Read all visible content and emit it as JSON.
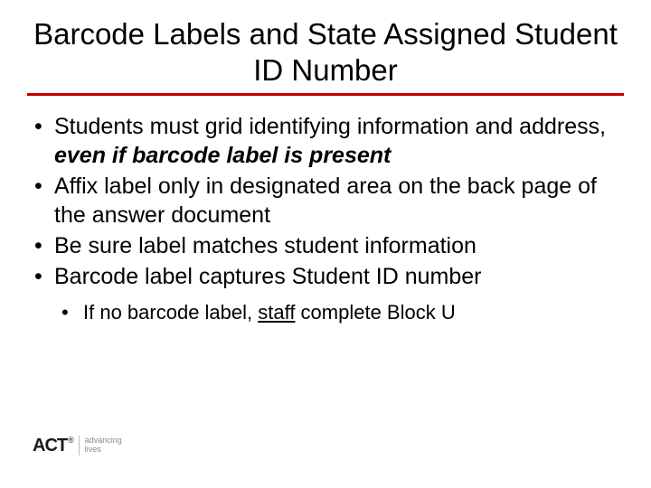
{
  "title": "Barcode Labels and State Assigned Student ID Number",
  "rule_color": "#c00000",
  "bullets": {
    "b1_pre": "Students must grid identifying information and address, ",
    "b1_em": "even if barcode label is present",
    "b2": "Affix label only in designated area on the back page of the answer document",
    "b3": "Be sure label matches student information",
    "b4": "Barcode label captures Student ID number"
  },
  "sub": {
    "s1_pre": "If no barcode label, ",
    "s1_u": "staff",
    "s1_post": " complete Block U"
  },
  "logo": {
    "brand": "ACT",
    "reg": "®",
    "tag1": "advancing",
    "tag2": "lives"
  },
  "colors": {
    "text": "#000000",
    "background": "#ffffff",
    "tag": "#8a8a8a",
    "divider": "#bdbdbd"
  },
  "fontsizes": {
    "title": 33,
    "bullet": 25,
    "sub_bullet": 22,
    "logo_brand": 20,
    "logo_tag": 9
  }
}
